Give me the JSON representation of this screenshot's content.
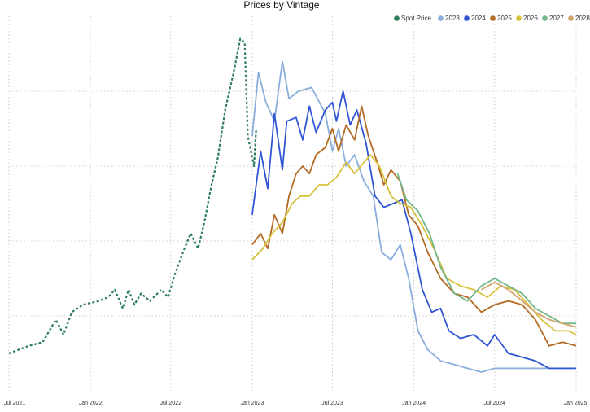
{
  "chart_data": {
    "type": "line",
    "title": "Prices by Vintage",
    "xlabel": "",
    "ylabel": "",
    "grid": true,
    "legend_position": "top-right",
    "x_range": [
      "2021-07-01",
      "2025-01-01"
    ],
    "y_range": [
      0,
      100
    ],
    "x_ticks": [
      {
        "date": "2021-07-01",
        "label": "Jul 2021"
      },
      {
        "date": "2022-01-01",
        "label": "Jan 2022"
      },
      {
        "date": "2022-07-01",
        "label": "Jul 2022"
      },
      {
        "date": "2023-01-01",
        "label": "Jan 2023"
      },
      {
        "date": "2023-07-01",
        "label": "Jul 2023"
      },
      {
        "date": "2024-01-01",
        "label": "Jan 2024"
      },
      {
        "date": "2024-07-01",
        "label": "Jul 2024"
      },
      {
        "date": "2025-01-01",
        "label": "Jan 2025"
      }
    ],
    "y_gridlines": [
      20,
      40,
      60,
      80
    ],
    "series": [
      {
        "name": "Spot Price",
        "color": "#2e7d5b",
        "dashed": true,
        "points": [
          [
            "2021-07-01",
            10
          ],
          [
            "2021-08-15",
            12
          ],
          [
            "2021-09-15",
            13
          ],
          [
            "2021-10-15",
            19
          ],
          [
            "2021-11-01",
            15
          ],
          [
            "2021-11-20",
            21
          ],
          [
            "2021-12-15",
            23
          ],
          [
            "2022-01-20",
            24
          ],
          [
            "2022-02-10",
            25
          ],
          [
            "2022-02-25",
            27
          ],
          [
            "2022-03-15",
            22
          ],
          [
            "2022-03-28",
            27
          ],
          [
            "2022-04-10",
            23
          ],
          [
            "2022-04-25",
            26
          ],
          [
            "2022-05-15",
            24
          ],
          [
            "2022-06-10",
            27
          ],
          [
            "2022-06-25",
            25
          ],
          [
            "2022-07-10",
            31
          ],
          [
            "2022-08-01",
            38
          ],
          [
            "2022-08-15",
            42
          ],
          [
            "2022-09-01",
            38
          ],
          [
            "2022-09-15",
            45
          ],
          [
            "2022-10-01",
            55
          ],
          [
            "2022-10-15",
            62
          ],
          [
            "2022-11-01",
            75
          ],
          [
            "2022-11-20",
            85
          ],
          [
            "2022-12-05",
            94
          ],
          [
            "2022-12-15",
            93
          ],
          [
            "2022-12-22",
            68
          ],
          [
            "2023-01-05",
            60
          ],
          [
            "2023-01-10",
            70
          ]
        ]
      },
      {
        "name": "2023",
        "color": "#8aaedc",
        "dashed": false,
        "points": [
          [
            "2023-01-01",
            68
          ],
          [
            "2023-01-15",
            85
          ],
          [
            "2023-02-01",
            77
          ],
          [
            "2023-02-20",
            72
          ],
          [
            "2023-03-10",
            88
          ],
          [
            "2023-03-25",
            78
          ],
          [
            "2023-04-15",
            80
          ],
          [
            "2023-05-15",
            81
          ],
          [
            "2023-06-15",
            74
          ],
          [
            "2023-07-01",
            64
          ],
          [
            "2023-07-15",
            70
          ],
          [
            "2023-08-01",
            60
          ],
          [
            "2023-08-20",
            63
          ],
          [
            "2023-09-10",
            56
          ],
          [
            "2023-10-01",
            52
          ],
          [
            "2023-10-20",
            37
          ],
          [
            "2023-11-10",
            35
          ],
          [
            "2023-12-01",
            39
          ],
          [
            "2023-12-20",
            30
          ],
          [
            "2024-01-10",
            16
          ],
          [
            "2024-02-01",
            11
          ],
          [
            "2024-03-01",
            8
          ],
          [
            "2024-04-01",
            7
          ],
          [
            "2024-05-01",
            6
          ],
          [
            "2024-06-01",
            5
          ],
          [
            "2024-07-01",
            6
          ],
          [
            "2024-08-01",
            6
          ],
          [
            "2024-09-01",
            6
          ],
          [
            "2024-10-01",
            6
          ],
          [
            "2024-11-01",
            6
          ],
          [
            "2024-12-01",
            6
          ],
          [
            "2025-01-01",
            6
          ]
        ]
      },
      {
        "name": "2024",
        "color": "#2f55d4",
        "dashed": false,
        "points": [
          [
            "2023-01-01",
            47
          ],
          [
            "2023-01-20",
            64
          ],
          [
            "2023-02-05",
            54
          ],
          [
            "2023-02-20",
            74
          ],
          [
            "2023-03-10",
            59
          ],
          [
            "2023-03-20",
            72
          ],
          [
            "2023-04-10",
            73
          ],
          [
            "2023-04-25",
            67
          ],
          [
            "2023-05-10",
            76
          ],
          [
            "2023-05-25",
            69
          ],
          [
            "2023-06-15",
            75
          ],
          [
            "2023-07-01",
            77
          ],
          [
            "2023-07-10",
            72
          ],
          [
            "2023-07-25",
            80
          ],
          [
            "2023-08-10",
            71
          ],
          [
            "2023-08-25",
            75
          ],
          [
            "2023-09-15",
            66
          ],
          [
            "2023-10-05",
            52
          ],
          [
            "2023-10-25",
            49
          ],
          [
            "2023-11-15",
            50
          ],
          [
            "2023-12-05",
            51
          ],
          [
            "2023-12-25",
            42
          ],
          [
            "2024-01-20",
            27
          ],
          [
            "2024-02-10",
            21
          ],
          [
            "2024-03-01",
            22
          ],
          [
            "2024-03-20",
            16
          ],
          [
            "2024-04-15",
            14
          ],
          [
            "2024-05-15",
            15
          ],
          [
            "2024-06-15",
            12
          ],
          [
            "2024-07-01",
            15
          ],
          [
            "2024-08-01",
            10
          ],
          [
            "2024-09-01",
            9
          ],
          [
            "2024-10-01",
            8
          ],
          [
            "2024-11-01",
            6
          ],
          [
            "2024-12-01",
            6
          ],
          [
            "2025-01-01",
            6
          ]
        ]
      },
      {
        "name": "2025",
        "color": "#b36b24",
        "dashed": false,
        "points": [
          [
            "2023-01-01",
            39
          ],
          [
            "2023-01-20",
            42
          ],
          [
            "2023-02-05",
            38
          ],
          [
            "2023-02-20",
            47
          ],
          [
            "2023-03-10",
            42
          ],
          [
            "2023-03-25",
            52
          ],
          [
            "2023-04-10",
            58
          ],
          [
            "2023-04-25",
            60
          ],
          [
            "2023-05-10",
            58
          ],
          [
            "2023-05-25",
            63
          ],
          [
            "2023-06-15",
            65
          ],
          [
            "2023-07-01",
            70
          ],
          [
            "2023-07-15",
            64
          ],
          [
            "2023-08-01",
            71
          ],
          [
            "2023-08-20",
            67
          ],
          [
            "2023-09-05",
            76
          ],
          [
            "2023-09-20",
            68
          ],
          [
            "2023-10-10",
            61
          ],
          [
            "2023-10-25",
            55
          ],
          [
            "2023-11-10",
            59
          ],
          [
            "2023-12-01",
            56
          ],
          [
            "2023-12-20",
            47
          ],
          [
            "2024-01-10",
            44
          ],
          [
            "2024-02-01",
            37
          ],
          [
            "2024-03-01",
            30
          ],
          [
            "2024-04-01",
            26
          ],
          [
            "2024-05-01",
            25
          ],
          [
            "2024-06-01",
            21
          ],
          [
            "2024-07-01",
            23
          ],
          [
            "2024-08-01",
            24
          ],
          [
            "2024-09-01",
            23
          ],
          [
            "2024-10-01",
            19
          ],
          [
            "2024-11-01",
            12
          ],
          [
            "2024-12-01",
            13
          ],
          [
            "2025-01-01",
            12
          ]
        ]
      },
      {
        "name": "2026",
        "color": "#d7c03b",
        "dashed": false,
        "points": [
          [
            "2023-01-01",
            35
          ],
          [
            "2023-01-25",
            38
          ],
          [
            "2023-02-15",
            42
          ],
          [
            "2023-03-10",
            45
          ],
          [
            "2023-04-01",
            50
          ],
          [
            "2023-04-20",
            52
          ],
          [
            "2023-05-10",
            52
          ],
          [
            "2023-06-01",
            55
          ],
          [
            "2023-06-20",
            55
          ],
          [
            "2023-07-10",
            57
          ],
          [
            "2023-08-01",
            61
          ],
          [
            "2023-08-20",
            58
          ],
          [
            "2023-09-10",
            61
          ],
          [
            "2023-09-25",
            63
          ],
          [
            "2023-10-15",
            60
          ],
          [
            "2023-11-10",
            52
          ],
          [
            "2023-12-01",
            50
          ],
          [
            "2023-12-25",
            49
          ],
          [
            "2024-01-20",
            44
          ],
          [
            "2024-02-15",
            38
          ],
          [
            "2024-03-15",
            30
          ],
          [
            "2024-04-15",
            28
          ],
          [
            "2024-05-15",
            27
          ],
          [
            "2024-06-15",
            25
          ],
          [
            "2024-07-15",
            28
          ],
          [
            "2024-08-15",
            27
          ],
          [
            "2024-09-15",
            23
          ],
          [
            "2024-10-15",
            19
          ],
          [
            "2024-11-15",
            16
          ],
          [
            "2024-12-15",
            16
          ],
          [
            "2025-01-01",
            15
          ]
        ]
      },
      {
        "name": "2027",
        "color": "#73b78a",
        "dashed": false,
        "points": [
          [
            "2023-11-25",
            58
          ],
          [
            "2023-12-15",
            51
          ],
          [
            "2024-01-10",
            48
          ],
          [
            "2024-02-05",
            42
          ],
          [
            "2024-03-01",
            33
          ],
          [
            "2024-04-01",
            26
          ],
          [
            "2024-05-01",
            24
          ],
          [
            "2024-06-01",
            28
          ],
          [
            "2024-07-01",
            30
          ],
          [
            "2024-08-01",
            28
          ],
          [
            "2024-09-01",
            26
          ],
          [
            "2024-10-01",
            22
          ],
          [
            "2024-11-01",
            20
          ],
          [
            "2024-12-01",
            18
          ],
          [
            "2025-01-01",
            18
          ]
        ]
      },
      {
        "name": "2028",
        "color": "#d1a56b",
        "dashed": false,
        "points": [
          [
            "2024-06-01",
            27
          ],
          [
            "2024-07-01",
            29
          ],
          [
            "2024-08-01",
            27
          ],
          [
            "2024-09-01",
            24
          ],
          [
            "2024-10-01",
            21
          ],
          [
            "2024-11-01",
            19
          ],
          [
            "2024-12-01",
            18
          ],
          [
            "2025-01-01",
            17
          ]
        ]
      }
    ]
  }
}
